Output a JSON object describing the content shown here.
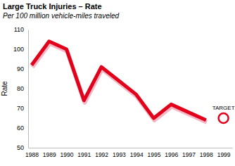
{
  "chart_data": {
    "type": "line",
    "title": "Large Truck Injuries – Rate",
    "subtitle": "Per 100 million vehicle-miles traveled",
    "y_label": "Rate",
    "x": [
      1988,
      1989,
      1990,
      1991,
      1992,
      1993,
      1994,
      1995,
      1996,
      1997,
      1998
    ],
    "values": [
      92,
      104,
      100,
      74,
      91,
      84,
      77,
      65,
      72,
      68,
      64
    ],
    "color": "#e3001b",
    "xlim": [
      1987.8,
      1999.5
    ],
    "xticks": [
      1988,
      1989,
      1990,
      1991,
      1992,
      1993,
      1994,
      1995,
      1996,
      1997,
      1998,
      1999
    ],
    "ylim": [
      50,
      110
    ],
    "yticks": [
      50,
      60,
      70,
      80,
      90,
      100,
      110
    ],
    "grid": false,
    "target": {
      "label": "TARGET",
      "x": 1999,
      "value": 65,
      "marker": "circle"
    }
  }
}
